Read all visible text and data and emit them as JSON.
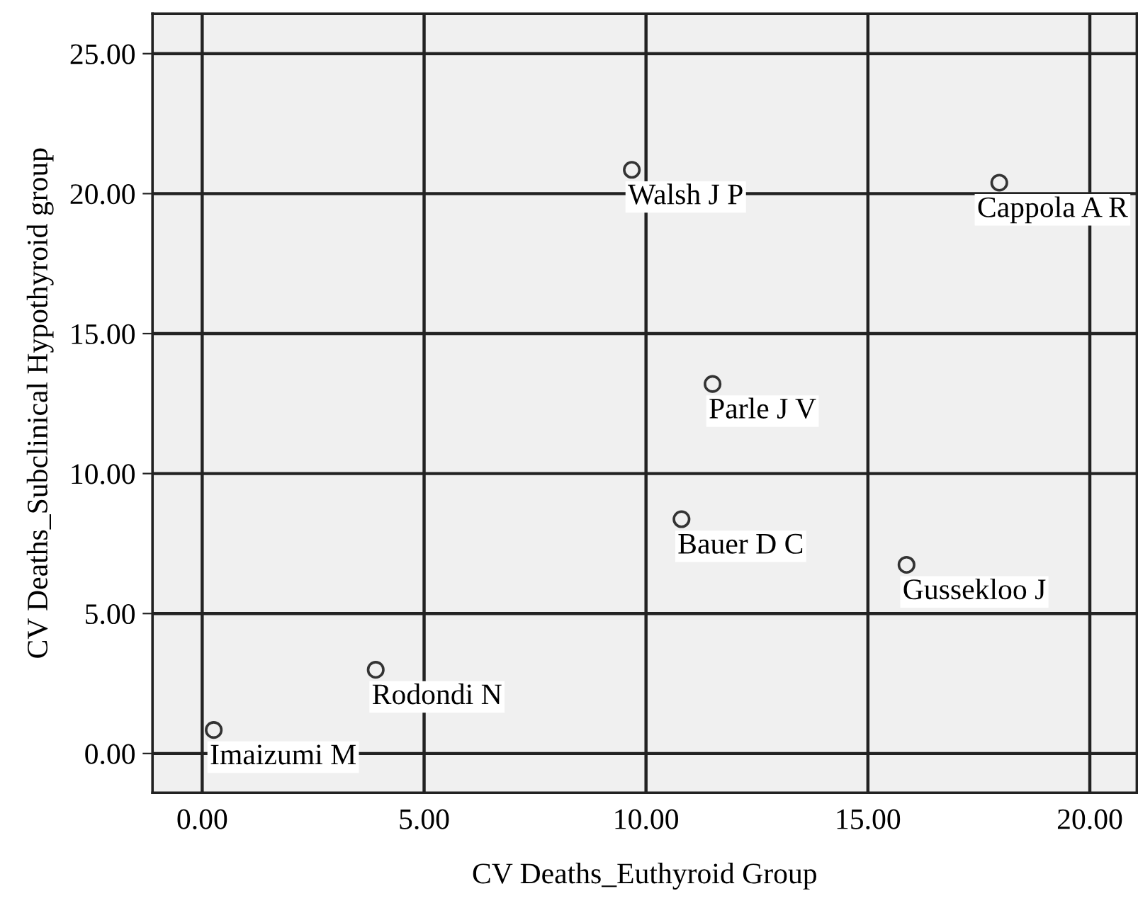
{
  "chart_data": {
    "type": "scatter",
    "xlabel": "CV Deaths_Euthyroid Group",
    "ylabel": "CV Deaths_Subclinical Hypothyroid group",
    "x": [
      9.68,
      17.96,
      11.5,
      10.8,
      15.87,
      3.91,
      0.26
    ],
    "values": [
      20.85,
      20.39,
      13.2,
      8.37,
      6.74,
      2.99,
      0.84
    ],
    "color": "#333333",
    "marker": "circle",
    "grid": true,
    "xlim": [
      -1.12,
      21.06
    ],
    "ylim": [
      -1.4,
      26.43
    ],
    "xticks": [
      {
        "value": 0,
        "label": "0.00"
      },
      {
        "value": 5,
        "label": "5.00"
      },
      {
        "value": 10,
        "label": "10.00"
      },
      {
        "value": 15,
        "label": "15.00"
      },
      {
        "value": 20,
        "label": "20.00"
      }
    ],
    "yticks": [
      {
        "value": 0,
        "label": "0.00"
      },
      {
        "value": 5,
        "label": "5.00"
      },
      {
        "value": 10,
        "label": "10.00"
      },
      {
        "value": 15,
        "label": "15.00"
      },
      {
        "value": 20,
        "label": "20.00"
      },
      {
        "value": 25,
        "label": "25.00"
      }
    ],
    "annotations": [
      {
        "text": "Walsh J P",
        "x": 9.68,
        "y": 20.85
      },
      {
        "text": "Cappola A R",
        "x": 17.96,
        "y": 20.39
      },
      {
        "text": "Parle J V",
        "x": 11.5,
        "y": 13.2
      },
      {
        "text": "Bauer D C",
        "x": 10.8,
        "y": 8.37
      },
      {
        "text": "Gussekloo J",
        "x": 15.87,
        "y": 6.74
      },
      {
        "text": "Rodondi N",
        "x": 3.91,
        "y": 2.99
      },
      {
        "text": "Imaizumi M",
        "x": 0.26,
        "y": 0.84
      }
    ]
  }
}
